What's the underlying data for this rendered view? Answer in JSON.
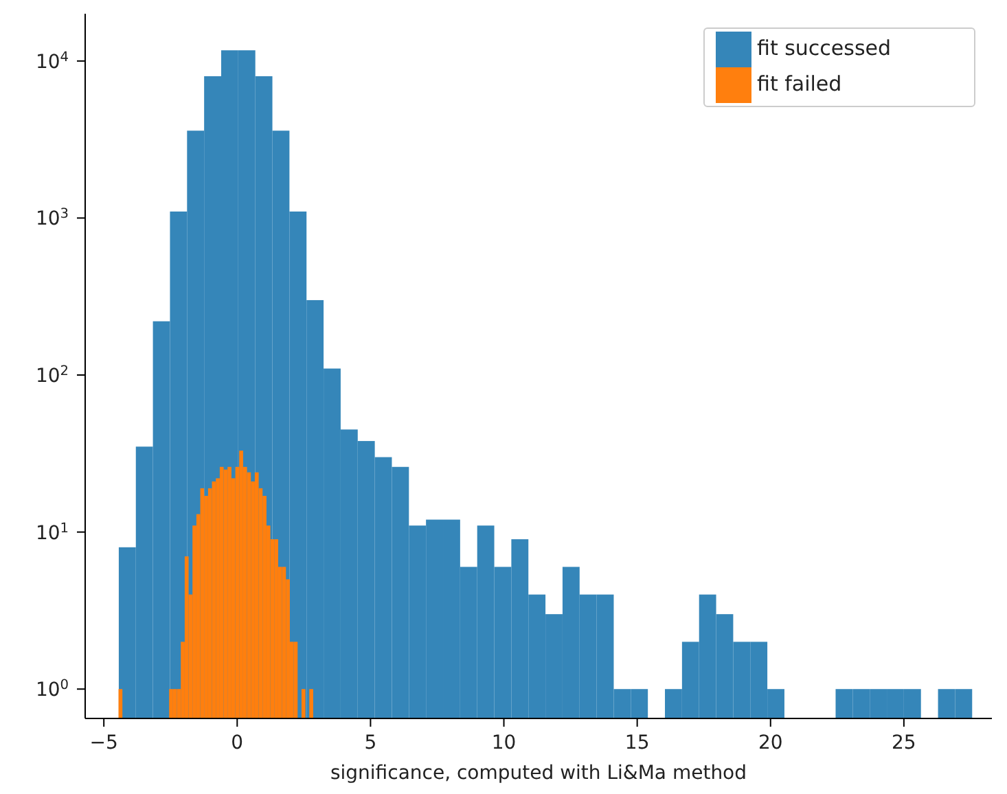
{
  "chart_data": {
    "type": "bar",
    "xlabel": "significance, computed with Li&Ma method",
    "log": "y",
    "grid": false,
    "legend": "top right",
    "xlim": [
      -5.7,
      28.3
    ],
    "xticks": [
      {
        "value": -5,
        "label": "−5"
      },
      0,
      5,
      10,
      15,
      20,
      25
    ],
    "ylim": [
      0.65,
      20000
    ],
    "yticks": [
      {
        "value": 1,
        "label": "10$^{0}$"
      },
      {
        "value": 10,
        "label": "10$^{1}$"
      },
      {
        "value": 100,
        "label": "10$^{2}$"
      },
      {
        "value": 1000,
        "label": "10$^{3}$"
      },
      {
        "value": 10000,
        "label": "10$^{4}$"
      }
    ],
    "series": [
      {
        "name": "fit successed",
        "color": "#3586b9",
        "x": [
          -4.12,
          -3.48,
          -2.84,
          -2.2,
          -1.56,
          -0.92,
          -0.28,
          0.36,
          1.0,
          1.64,
          2.28,
          2.92,
          3.56,
          4.2,
          4.84,
          5.48,
          6.12,
          6.76,
          7.4,
          8.04,
          8.68,
          9.32,
          9.96,
          10.6,
          11.24,
          11.88,
          12.52,
          13.16,
          13.8,
          14.44,
          15.08,
          15.72,
          16.36,
          17.0,
          17.64,
          18.28,
          18.92,
          19.56,
          20.2,
          20.84,
          21.48,
          22.12,
          22.76,
          23.4,
          24.04,
          24.68,
          25.32,
          25.96,
          26.6,
          27.24
        ],
        "values": [
          8,
          35,
          220,
          1100,
          3600,
          8000,
          11700,
          11700,
          8000,
          3600,
          1100,
          300,
          110,
          45,
          38,
          30,
          26,
          11,
          12,
          12,
          6,
          11,
          6,
          9,
          4,
          3,
          6,
          4,
          4,
          1,
          1,
          null,
          1,
          2,
          4,
          3,
          2,
          2,
          1,
          null,
          null,
          null,
          1,
          1,
          1,
          1,
          1,
          null,
          1,
          1
        ]
      },
      {
        "name": "fit failed",
        "color": "#ff7f0e",
        "x": [
          -4.377,
          -4.231,
          -4.085,
          -3.939,
          -3.793,
          -3.647,
          -3.501,
          -3.355,
          -3.209,
          -3.063,
          -2.917,
          -2.771,
          -2.625,
          -2.479,
          -2.333,
          -2.187,
          -2.041,
          -1.895,
          -1.749,
          -1.603,
          -1.457,
          -1.311,
          -1.165,
          -1.019,
          -0.873,
          -0.727,
          -0.581,
          -0.435,
          -0.289,
          -0.143,
          0.003,
          0.149,
          0.295,
          0.441,
          0.587,
          0.733,
          0.879,
          1.025,
          1.171,
          1.317,
          1.463,
          1.609,
          1.755,
          1.901,
          2.047,
          2.193,
          2.339,
          2.485,
          2.631,
          2.777
        ],
        "values": [
          1,
          null,
          null,
          null,
          null,
          null,
          null,
          null,
          null,
          null,
          null,
          null,
          null,
          1,
          1,
          1,
          2,
          7,
          4,
          11,
          13,
          19,
          17,
          19,
          21,
          22,
          26,
          25,
          26,
          22,
          26,
          33,
          26,
          24,
          21,
          24,
          19,
          17,
          11,
          9,
          9,
          6,
          6,
          5,
          2,
          2,
          null,
          1,
          null,
          1
        ]
      }
    ]
  }
}
